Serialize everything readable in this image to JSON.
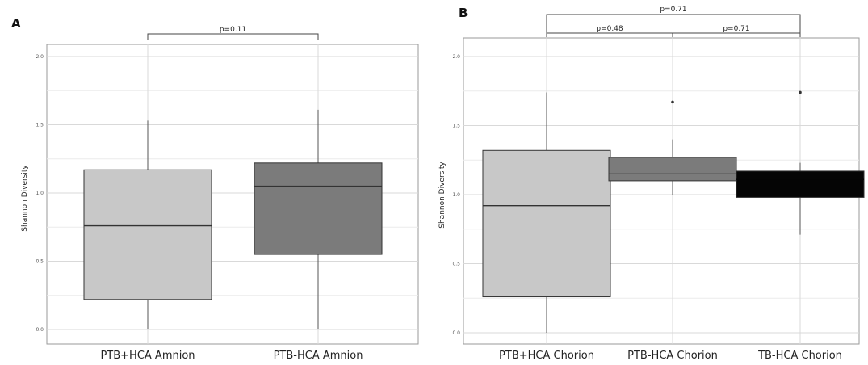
{
  "chart_data": [
    {
      "panel": "A",
      "type": "box",
      "ylabel": "Shannon Diversity",
      "ylim": [
        0.0,
        2.0
      ],
      "yticks": [
        "0.0",
        "0.5",
        "1.0",
        "1.5",
        "2.0"
      ],
      "grid": true,
      "categories": [
        "PTB+HCA Amnion",
        "PTB-HCA Amnion"
      ],
      "boxes": [
        {
          "category": "PTB+HCA Amnion",
          "color": "#c8c8c8",
          "whisker_low": 0.0,
          "q1": 0.22,
          "median": 0.76,
          "q3": 1.17,
          "whisker_high": 1.53,
          "outliers": []
        },
        {
          "category": "PTB-HCA Amnion",
          "color": "#7b7b7b",
          "whisker_low": 0.0,
          "q1": 0.55,
          "median": 1.05,
          "q3": 1.22,
          "whisker_high": 1.61,
          "outliers": []
        }
      ],
      "comparisons": [
        {
          "from": 0,
          "to": 1,
          "label": "p=0.11"
        }
      ]
    },
    {
      "panel": "B",
      "type": "box",
      "ylabel": "Shannon Diversity",
      "ylim": [
        0.0,
        2.0
      ],
      "yticks": [
        "0.0",
        "0.5",
        "1.0",
        "1.5",
        "2.0"
      ],
      "grid": true,
      "categories": [
        "PTB+HCA Chorion",
        "PTB-HCA Chorion",
        "TB-HCA Chorion"
      ],
      "boxes": [
        {
          "category": "PTB+HCA Chorion",
          "color": "#c8c8c8",
          "whisker_low": 0.0,
          "q1": 0.26,
          "median": 0.92,
          "q3": 1.32,
          "whisker_high": 1.74,
          "outliers": []
        },
        {
          "category": "PTB-HCA Chorion",
          "color": "#7b7b7b",
          "whisker_low": 1.0,
          "q1": 1.1,
          "median": 1.15,
          "q3": 1.27,
          "whisker_high": 1.4,
          "outliers": [
            1.67
          ]
        },
        {
          "category": "TB-HCA Chorion",
          "color": "#050505",
          "whisker_low": 0.71,
          "q1": 0.98,
          "median": 1.11,
          "q3": 1.17,
          "whisker_high": 1.23,
          "outliers": [
            1.74
          ]
        }
      ],
      "comparisons": [
        {
          "from": 0,
          "to": 1,
          "label": "p=0.48"
        },
        {
          "from": 1,
          "to": 2,
          "label": "p=0.71"
        },
        {
          "from": 0,
          "to": 2,
          "label": "p=0.71"
        }
      ]
    }
  ]
}
